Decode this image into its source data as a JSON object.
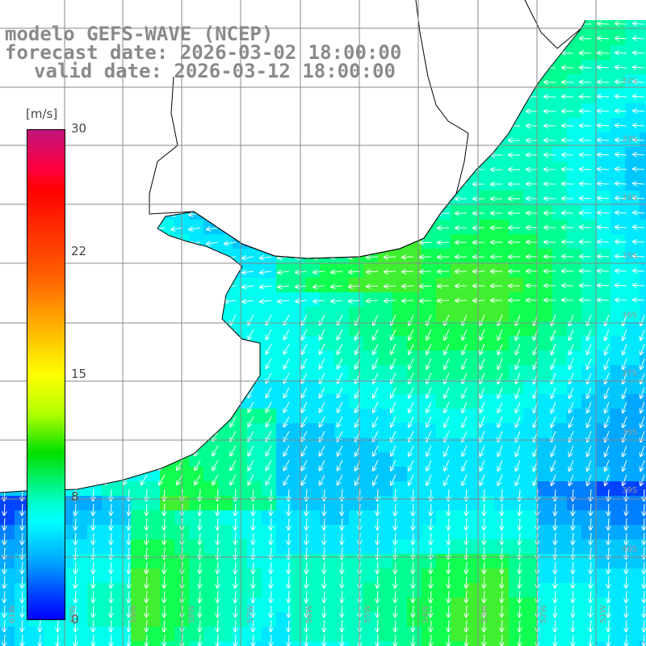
{
  "title": {
    "model": "modelo GEFS-WAVE (NCEP)",
    "forecast": "forecast date: 2026-03-02 18:00:00",
    "valid": "valid date: 2026-03-12 18:00:00"
  },
  "colorbar": {
    "unit": "[m/s]",
    "ticks": [
      "30",
      "22",
      "15",
      "8",
      "0"
    ],
    "tick_values": [
      30,
      22,
      15,
      8,
      0
    ]
  },
  "latitude_labels": [
    "32S",
    "33S",
    "34S",
    "35S",
    "36S",
    "37S",
    "38S",
    "39S",
    "40S"
  ],
  "longitude_labels": [
    "61W",
    "60W",
    "59W",
    "58W",
    "57W",
    "56W",
    "55W",
    "54W",
    "53W",
    "52W",
    "51W"
  ],
  "colors": {
    "land": "#ffffff",
    "coast": "#000000",
    "grid": "#888888",
    "arrow": "#ffffff"
  },
  "field": {
    "variable": "wind speed",
    "unit": "m/s",
    "arrow_direction": "mostly southward / southwestward"
  }
}
